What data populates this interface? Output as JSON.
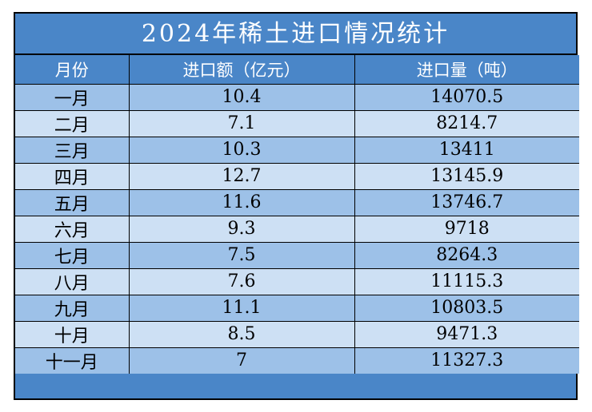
{
  "title": "2024年稀土进口情况统计",
  "headers": {
    "month": "月份",
    "amount": "进口额（亿元）",
    "volume": "进口量（吨）"
  },
  "rows": [
    {
      "month": "一月",
      "amount": "10.4",
      "volume": "14070.5"
    },
    {
      "month": "二月",
      "amount": "7.1",
      "volume": "8214.7"
    },
    {
      "month": "三月",
      "amount": "10.3",
      "volume": "13411"
    },
    {
      "month": "四月",
      "amount": "12.7",
      "volume": "13145.9"
    },
    {
      "month": "五月",
      "amount": "11.6",
      "volume": "13746.7"
    },
    {
      "month": "六月",
      "amount": "9.3",
      "volume": "9718"
    },
    {
      "month": "七月",
      "amount": "7.5",
      "volume": "8264.3"
    },
    {
      "month": "八月",
      "amount": "7.6",
      "volume": "11115.3"
    },
    {
      "month": "九月",
      "amount": "11.1",
      "volume": "10803.5"
    },
    {
      "month": "十月",
      "amount": "8.5",
      "volume": "9471.3"
    },
    {
      "month": "十一月",
      "amount": "7",
      "volume": "11327.3"
    }
  ],
  "colors": {
    "header": "#4a86c8",
    "row_dark": "#9dc1e8",
    "row_light": "#cde0f4"
  }
}
